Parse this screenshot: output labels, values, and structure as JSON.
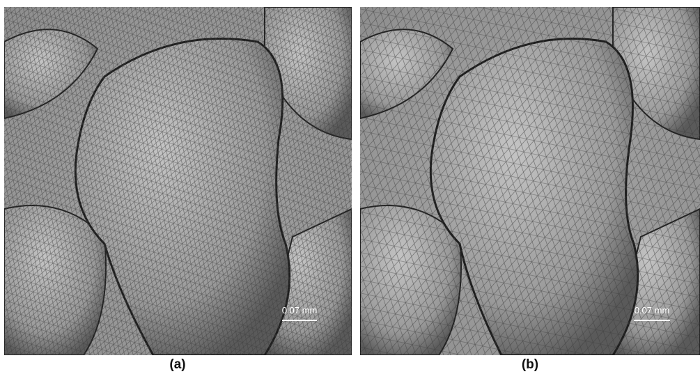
{
  "panels": [
    {
      "caption": "(a)",
      "scale_bar": "0.07 mm"
    },
    {
      "caption": "(b)",
      "scale_bar": "0.07 mm"
    }
  ]
}
